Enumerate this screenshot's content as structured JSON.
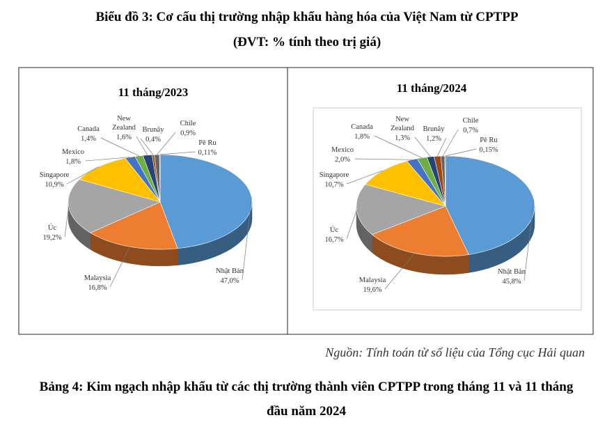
{
  "title": "Biểu đồ 3: Cơ cấu thị trường nhập khẩu hàng hóa của Việt Nam từ CPTPP",
  "subtitle": "(ĐVT: % tính theo trị giá)",
  "chart_data": [
    {
      "type": "pie",
      "title": "11 tháng/2023",
      "categories": [
        "Nhật Bản",
        "Malaysia",
        "Úc",
        "Singapore",
        "Mexico",
        "Canada",
        "New Zealand",
        "Brunây",
        "Chile",
        "Pê Ru"
      ],
      "values": [
        47.0,
        16.8,
        19.2,
        10.9,
        1.8,
        1.4,
        1.6,
        0.4,
        0.9,
        0.11
      ],
      "value_labels": [
        "47,0%",
        "16,8%",
        "19,2%",
        "10,9%",
        "1,8%",
        "1,4%",
        "1,6%",
        "0,4%",
        "0,9%",
        "0,11%"
      ],
      "colors": [
        "#5b9bd5",
        "#ed7d31",
        "#a5a5a5",
        "#ffc000",
        "#4472c4",
        "#70ad47",
        "#264478",
        "#9e480e",
        "#636363",
        "#997300"
      ]
    },
    {
      "type": "pie",
      "title": "11 tháng/2024",
      "categories": [
        "Nhật Bản",
        "Malaysia",
        "Úc",
        "Singapore",
        "Mexico",
        "Canada",
        "New Zealand",
        "Brunây",
        "Chile",
        "Pê Ru"
      ],
      "values": [
        45.8,
        19.6,
        16.7,
        10.7,
        2.0,
        1.8,
        1.3,
        1.2,
        0.7,
        0.15
      ],
      "value_labels": [
        "45,8%",
        "19,6%",
        "16,7%",
        "10,7%",
        "2,0%",
        "1,8%",
        "1,3%",
        "1,2%",
        "0,7%",
        "0,15%"
      ],
      "colors": [
        "#5b9bd5",
        "#ed7d31",
        "#a5a5a5",
        "#ffc000",
        "#4472c4",
        "#70ad47",
        "#264478",
        "#9e480e",
        "#636363",
        "#997300"
      ]
    }
  ],
  "source": "Nguồn: Tính toán từ số liệu của Tổng cục Hải quan",
  "table_title": "Bảng 4: Kim ngạch nhập khẩu từ các thị trường thành viên CPTPP trong tháng 11 và 11 tháng đầu năm 2024"
}
